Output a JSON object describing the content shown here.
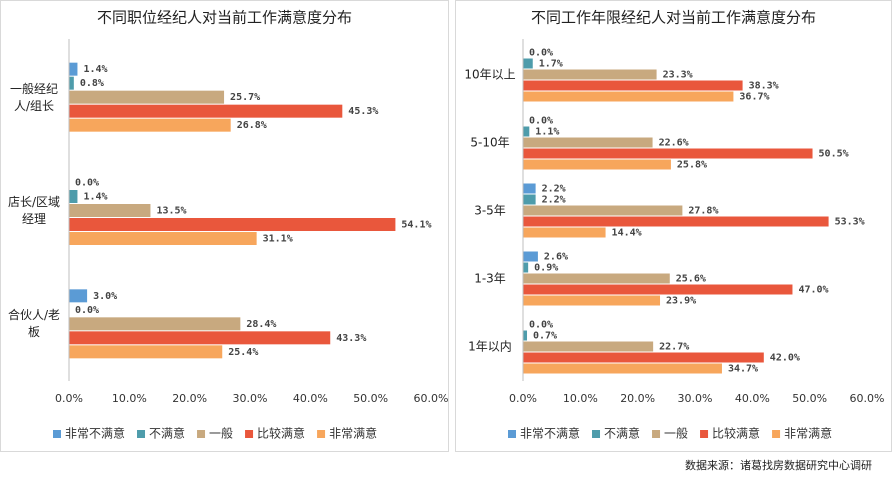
{
  "chart_data": [
    {
      "type": "bar",
      "orientation": "horizontal",
      "title": "不同职位经纪人对当前工作满意度分布",
      "categories": [
        "一般经纪人/组长",
        "店长/区域经理",
        "合伙人/老板"
      ],
      "series": [
        {
          "name": "非常不满意",
          "color": "#5b9bd5",
          "values": [
            1.4,
            0.0,
            3.0
          ],
          "value_labels": [
            "1.4%",
            "0.0%",
            "3.0%"
          ]
        },
        {
          "name": "不满意",
          "color": "#4e9cab",
          "values": [
            0.8,
            1.4,
            0.0
          ],
          "value_labels": [
            "0.8%",
            "1.4%",
            "0.0%"
          ]
        },
        {
          "name": "一般",
          "color": "#c8a97f",
          "values": [
            25.7,
            13.5,
            28.4
          ],
          "value_labels": [
            "25.7%",
            "13.5%",
            "28.4%"
          ]
        },
        {
          "name": "比较满意",
          "color": "#e9573c",
          "values": [
            45.3,
            54.1,
            43.3
          ],
          "value_labels": [
            "45.3%",
            "54.1%",
            "43.3%"
          ]
        },
        {
          "name": "非常满意",
          "color": "#f7a65c",
          "values": [
            26.8,
            31.1,
            25.4
          ],
          "value_labels": [
            "26.8%",
            "31.1%",
            "25.4%"
          ]
        }
      ],
      "xlim": [
        0,
        60
      ],
      "xticks": [
        {
          "value": 0,
          "label": "0.0%"
        },
        {
          "value": 10,
          "label": "10.0%"
        },
        {
          "value": 20,
          "label": "20.0%"
        },
        {
          "value": 30,
          "label": "30.0%"
        },
        {
          "value": 40,
          "label": "40.0%"
        },
        {
          "value": 50,
          "label": "50.0%"
        },
        {
          "value": 60,
          "label": "60.0%"
        }
      ],
      "legend": "bottom"
    },
    {
      "type": "bar",
      "orientation": "horizontal",
      "title": "不同工作年限经纪人对当前工作满意度分布",
      "categories": [
        "10年以上",
        "5-10年",
        "3-5年",
        "1-3年",
        "1年以内"
      ],
      "series": [
        {
          "name": "非常不满意",
          "color": "#5b9bd5",
          "values": [
            0.0,
            0.0,
            2.2,
            2.6,
            0.0
          ],
          "value_labels": [
            "0.0%",
            "0.0%",
            "2.2%",
            "2.6%",
            "0.0%"
          ]
        },
        {
          "name": "不满意",
          "color": "#4e9cab",
          "values": [
            1.7,
            1.1,
            2.2,
            0.9,
            0.7
          ],
          "value_labels": [
            "1.7%",
            "1.1%",
            "2.2%",
            "0.9%",
            "0.7%"
          ]
        },
        {
          "name": "一般",
          "color": "#c8a97f",
          "values": [
            23.3,
            22.6,
            27.8,
            25.6,
            22.7
          ],
          "value_labels": [
            "23.3%",
            "22.6%",
            "27.8%",
            "25.6%",
            "22.7%"
          ]
        },
        {
          "name": "比较满意",
          "color": "#e9573c",
          "values": [
            38.3,
            50.5,
            53.3,
            47.0,
            42.0
          ],
          "value_labels": [
            "38.3%",
            "50.5%",
            "53.3%",
            "47.0%",
            "42.0%"
          ]
        },
        {
          "name": "非常满意",
          "color": "#f7a65c",
          "values": [
            36.7,
            25.8,
            14.4,
            23.9,
            34.7
          ],
          "value_labels": [
            "36.7%",
            "25.8%",
            "14.4%",
            "23.9%",
            "34.7%"
          ]
        }
      ],
      "xlim": [
        0,
        60
      ],
      "xticks": [
        {
          "value": 0,
          "label": "0.0%"
        },
        {
          "value": 10,
          "label": "10.0%"
        },
        {
          "value": 20,
          "label": "20.0%"
        },
        {
          "value": 30,
          "label": "30.0%"
        },
        {
          "value": 40,
          "label": "40.0%"
        },
        {
          "value": 50,
          "label": "50.0%"
        },
        {
          "value": 60,
          "label": "60.0%"
        }
      ],
      "legend": "bottom"
    }
  ],
  "source": "数据来源：诸葛找房数据研究中心调研"
}
